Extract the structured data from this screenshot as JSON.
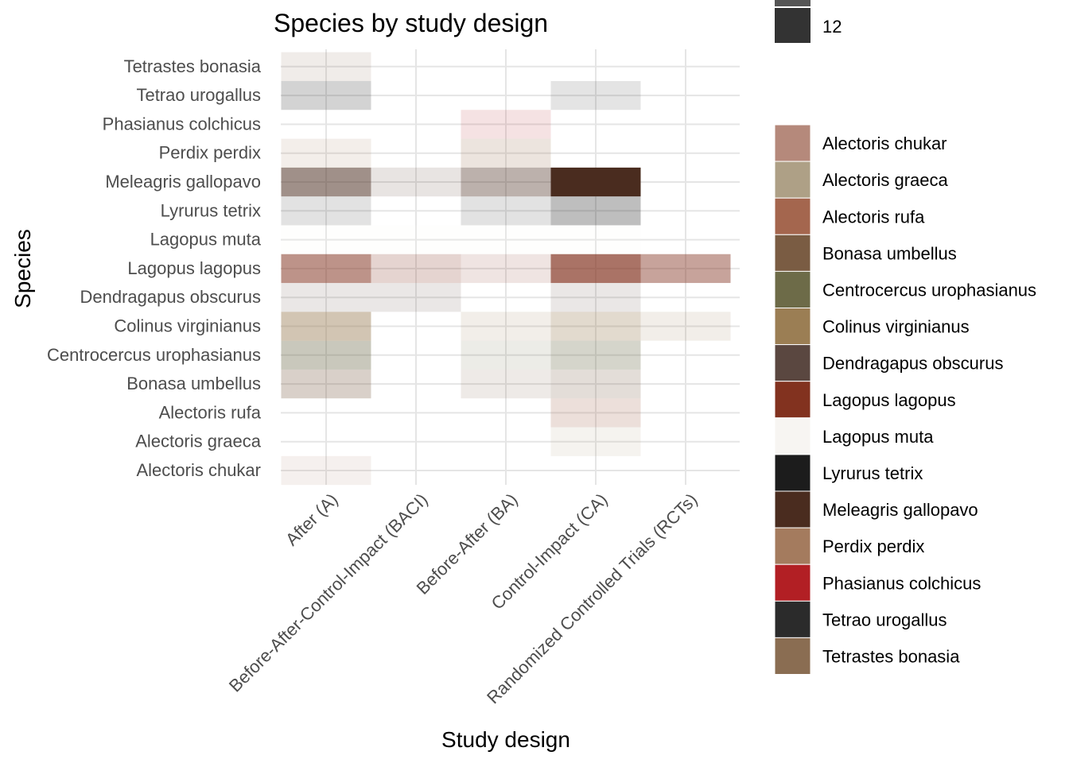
{
  "chart_data": {
    "type": "heatmap",
    "title": "Species by study design",
    "xlabel": "Study design",
    "ylabel": "Species",
    "x_categories": [
      "After (A)",
      "Before-After-Control-Impact (BACI)",
      "Before-After (BA)",
      "Control-Impact (CA)",
      "Randomized Controlled Trials (RCTs)"
    ],
    "y_categories": [
      "Alectoris chukar",
      "Alectoris graeca",
      "Alectoris rufa",
      "Bonasa umbellus",
      "Centrocercus urophasianus",
      "Colinus virginianus",
      "Dendragapus obscurus",
      "Lagopus lagopus",
      "Lagopus muta",
      "Lyrurus tetrix",
      "Meleagris gallopavo",
      "Perdix perdix",
      "Phasianus colchicus",
      "Tetrao urogallus",
      "Tetrastes bonasia"
    ],
    "count_legend_visible_label": "12",
    "count_max": 12,
    "cells": [
      {
        "species": "Alectoris chukar",
        "design": "After (A)",
        "count": 1
      },
      {
        "species": "Alectoris graeca",
        "design": "Control-Impact (CA)",
        "count": 1
      },
      {
        "species": "Alectoris rufa",
        "design": "Control-Impact (CA)",
        "count": 2
      },
      {
        "species": "Bonasa umbellus",
        "design": "After (A)",
        "count": 3
      },
      {
        "species": "Bonasa umbellus",
        "design": "Before-After (BA)",
        "count": 1
      },
      {
        "species": "Bonasa umbellus",
        "design": "Control-Impact (CA)",
        "count": 2
      },
      {
        "species": "Centrocercus urophasianus",
        "design": "After (A)",
        "count": 4
      },
      {
        "species": "Centrocercus urophasianus",
        "design": "Before-After (BA)",
        "count": 1
      },
      {
        "species": "Centrocercus urophasianus",
        "design": "Control-Impact (CA)",
        "count": 3
      },
      {
        "species": "Colinus virginianus",
        "design": "After (A)",
        "count": 5
      },
      {
        "species": "Colinus virginianus",
        "design": "Before-After (BA)",
        "count": 1
      },
      {
        "species": "Colinus virginianus",
        "design": "Control-Impact (CA)",
        "count": 3
      },
      {
        "species": "Colinus virginianus",
        "design": "Randomized Controlled Trials (RCTs)",
        "count": 1
      },
      {
        "species": "Dendragapus obscurus",
        "design": "After (A)",
        "count": 1
      },
      {
        "species": "Dendragapus obscurus",
        "design": "Before-After-Control-Impact (BACI)",
        "count": 1
      },
      {
        "species": "Dendragapus obscurus",
        "design": "Control-Impact (CA)",
        "count": 1
      },
      {
        "species": "Lagopus lagopus",
        "design": "After (A)",
        "count": 6
      },
      {
        "species": "Lagopus lagopus",
        "design": "Before-After-Control-Impact (BACI)",
        "count": 2
      },
      {
        "species": "Lagopus lagopus",
        "design": "Before-After (BA)",
        "count": 1
      },
      {
        "species": "Lagopus lagopus",
        "design": "Control-Impact (CA)",
        "count": 8
      },
      {
        "species": "Lagopus lagopus",
        "design": "Randomized Controlled Trials (RCTs)",
        "count": 5
      },
      {
        "species": "Lagopus muta",
        "design": "After (A)",
        "count": 1
      },
      {
        "species": "Lagopus muta",
        "design": "Before-After-Control-Impact (BACI)",
        "count": 1
      },
      {
        "species": "Lagopus muta",
        "design": "Before-After (BA)",
        "count": 1
      },
      {
        "species": "Lagopus muta",
        "design": "Control-Impact (CA)",
        "count": 1
      },
      {
        "species": "Lyrurus tetrix",
        "design": "After (A)",
        "count": 1
      },
      {
        "species": "Lyrurus tetrix",
        "design": "Before-After (BA)",
        "count": 1
      },
      {
        "species": "Lyrurus tetrix",
        "design": "Control-Impact (CA)",
        "count": 3
      },
      {
        "species": "Meleagris gallopavo",
        "design": "After (A)",
        "count": 6
      },
      {
        "species": "Meleagris gallopavo",
        "design": "Before-After-Control-Impact (BACI)",
        "count": 1
      },
      {
        "species": "Meleagris gallopavo",
        "design": "Before-After (BA)",
        "count": 4
      },
      {
        "species": "Meleagris gallopavo",
        "design": "Control-Impact (CA)",
        "count": 12
      },
      {
        "species": "Perdix perdix",
        "design": "After (A)",
        "count": 1
      },
      {
        "species": "Perdix perdix",
        "design": "Before-After (BA)",
        "count": 2
      },
      {
        "species": "Phasianus colchicus",
        "design": "Before-After (BA)",
        "count": 1
      },
      {
        "species": "Tetrao urogallus",
        "design": "After (A)",
        "count": 2
      },
      {
        "species": "Tetrao urogallus",
        "design": "Control-Impact (CA)",
        "count": 1
      },
      {
        "species": "Tetrastes bonasia",
        "design": "After (A)",
        "count": 1
      }
    ],
    "species_colors": [
      {
        "species": "Alectoris chukar",
        "color": "#b5897b"
      },
      {
        "species": "Alectoris graeca",
        "color": "#aea086"
      },
      {
        "species": "Alectoris rufa",
        "color": "#a4664e"
      },
      {
        "species": "Bonasa umbellus",
        "color": "#7a5c43"
      },
      {
        "species": "Centrocercus urophasianus",
        "color": "#6d6b48"
      },
      {
        "species": "Colinus virginianus",
        "color": "#9b7e54"
      },
      {
        "species": "Dendragapus obscurus",
        "color": "#5a4740"
      },
      {
        "species": "Lagopus lagopus",
        "color": "#82321f"
      },
      {
        "species": "Lagopus muta",
        "color": "#f7f5f2"
      },
      {
        "species": "Lyrurus tetrix",
        "color": "#1c1c1c"
      },
      {
        "species": "Meleagris gallopavo",
        "color": "#4a2c1f"
      },
      {
        "species": "Perdix perdix",
        "color": "#a47b5e"
      },
      {
        "species": "Phasianus colchicus",
        "color": "#b21f24"
      },
      {
        "species": "Tetrao urogallus",
        "color": "#2b2b2b"
      },
      {
        "species": "Tetrastes bonasia",
        "color": "#8a6d52"
      }
    ],
    "grid": true,
    "legend_position": "right"
  }
}
